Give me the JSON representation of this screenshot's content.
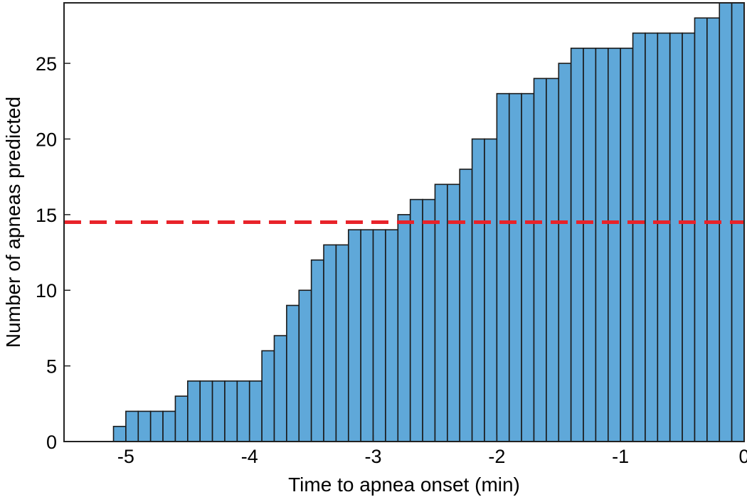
{
  "chart_data": {
    "type": "bar",
    "title": "",
    "xlabel": "Time to apnea onset (min)",
    "ylabel": "Number of apneas predicted",
    "xlim": [
      -5.5,
      0
    ],
    "ylim": [
      0,
      29
    ],
    "x_ticks": [
      -5,
      -4,
      -3,
      -2,
      -1,
      0
    ],
    "y_ticks": [
      0,
      5,
      10,
      15,
      20,
      25
    ],
    "grid": false,
    "bar_color": "#5fa8d9",
    "bin_width_min": 0.1,
    "bin_start": -5.5,
    "values": [
      0,
      0,
      0,
      0,
      1,
      2,
      2,
      2,
      2,
      3,
      4,
      4,
      4,
      4,
      4,
      4,
      6,
      7,
      9,
      10,
      12,
      13,
      13,
      14,
      14,
      14,
      14,
      15,
      16,
      16,
      17,
      17,
      18,
      20,
      20,
      23,
      23,
      23,
      24,
      24,
      25,
      26,
      26,
      26,
      26,
      26,
      27,
      27,
      27,
      27,
      27,
      28,
      28,
      29,
      29
    ],
    "threshold": {
      "y": 14.5,
      "color": "#e8232a",
      "style": "dashed"
    }
  }
}
